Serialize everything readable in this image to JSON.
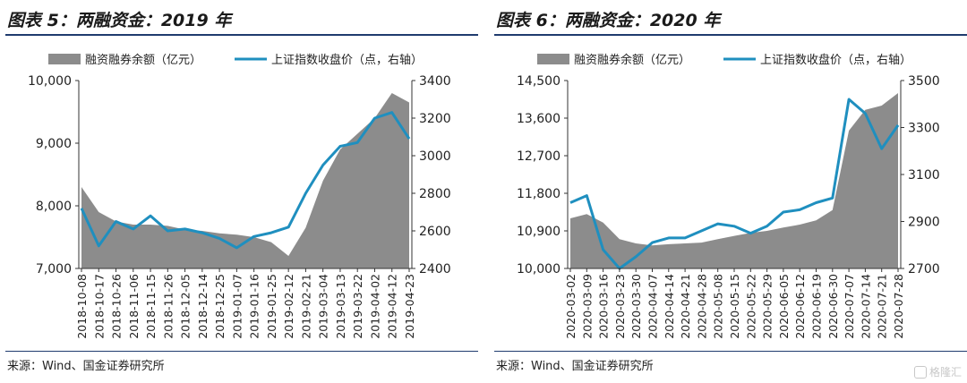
{
  "source_text": "来源：Wind、国金证券研究所",
  "watermark": {
    "text": "格隆汇"
  },
  "colors": {
    "area": "#8c8c8c",
    "line": "#1f8fbf",
    "rule": "#1f3b6e"
  },
  "chart_data": [
    {
      "type": "area+line",
      "title": "图表 5：两融资金：2019 年",
      "legend": [
        "融资融券余额（亿元）",
        "上证指数收盘价（点，右轴）"
      ],
      "ylim_left": [
        7000,
        10000
      ],
      "yticks_left": [
        "7,000",
        "8,000",
        "9,000",
        "10,000"
      ],
      "ytick_values_left": [
        7000,
        8000,
        9000,
        10000
      ],
      "ylim_right": [
        2400,
        3400
      ],
      "yticks_right": [
        "2400",
        "2600",
        "2800",
        "3000",
        "3200",
        "3400"
      ],
      "ytick_values_right": [
        2400,
        2600,
        2800,
        3000,
        3200,
        3400
      ],
      "x_labels": [
        "2018-10-08",
        "2018-10-17",
        "2018-10-26",
        "2018-11-06",
        "2018-11-15",
        "2018-11-26",
        "2018-12-05",
        "2018-12-14",
        "2018-12-25",
        "2019-01-07",
        "2019-01-16",
        "2019-01-25",
        "2019-02-12",
        "2019-02-21",
        "2019-03-04",
        "2019-03-13",
        "2019-03-22",
        "2019-04-02",
        "2019-04-12",
        "2019-04-23"
      ],
      "series": [
        {
          "name": "融资融券余额（亿元）",
          "axis": "left",
          "values": [
            8300,
            7900,
            7750,
            7700,
            7700,
            7680,
            7620,
            7600,
            7560,
            7540,
            7500,
            7420,
            7200,
            7650,
            8400,
            8900,
            9150,
            9400,
            9800,
            9650
          ]
        },
        {
          "name": "上证指数收盘价（点，右轴）",
          "axis": "right",
          "values": [
            2720,
            2520,
            2650,
            2610,
            2680,
            2600,
            2610,
            2590,
            2560,
            2510,
            2570,
            2590,
            2620,
            2800,
            2950,
            3050,
            3070,
            3200,
            3230,
            3090
          ]
        }
      ]
    },
    {
      "type": "area+line",
      "title": "图表 6：两融资金：2020 年",
      "legend": [
        "融资融券余额（亿元）",
        "上证指数收盘价（点，右轴）"
      ],
      "ylim_left": [
        10000,
        14500
      ],
      "yticks_left": [
        "10,000",
        "10,900",
        "11,800",
        "12,700",
        "13,600",
        "14,500"
      ],
      "ytick_values_left": [
        10000,
        10900,
        11800,
        12700,
        13600,
        14500
      ],
      "ylim_right": [
        2700,
        3500
      ],
      "yticks_right": [
        "2700",
        "2900",
        "3100",
        "3300",
        "3500"
      ],
      "ytick_values_right": [
        2700,
        2900,
        3100,
        3300,
        3500
      ],
      "x_labels": [
        "2020-03-02",
        "2020-03-09",
        "2020-03-16",
        "2020-03-23",
        "2020-03-30",
        "2020-04-07",
        "2020-04-14",
        "2020-04-21",
        "2020-04-28",
        "2020-05-08",
        "2020-05-15",
        "2020-05-22",
        "2020-05-29",
        "2020-06-05",
        "2020-06-12",
        "2020-06-19",
        "2020-06-30",
        "2020-07-07",
        "2020-07-14",
        "2020-07-21",
        "2020-07-28"
      ],
      "series": [
        {
          "name": "融资融券余额（亿元）",
          "axis": "left",
          "values": [
            11200,
            11300,
            11100,
            10700,
            10600,
            10550,
            10580,
            10600,
            10620,
            10700,
            10780,
            10850,
            10900,
            10980,
            11050,
            11150,
            11400,
            13300,
            13800,
            13900,
            14200
          ]
        },
        {
          "name": "上证指数收盘价（点，右轴）",
          "axis": "right",
          "values": [
            2980,
            3010,
            2780,
            2700,
            2750,
            2810,
            2830,
            2830,
            2860,
            2890,
            2880,
            2850,
            2880,
            2940,
            2950,
            2980,
            3000,
            3420,
            3360,
            3210,
            3310
          ]
        }
      ]
    }
  ]
}
